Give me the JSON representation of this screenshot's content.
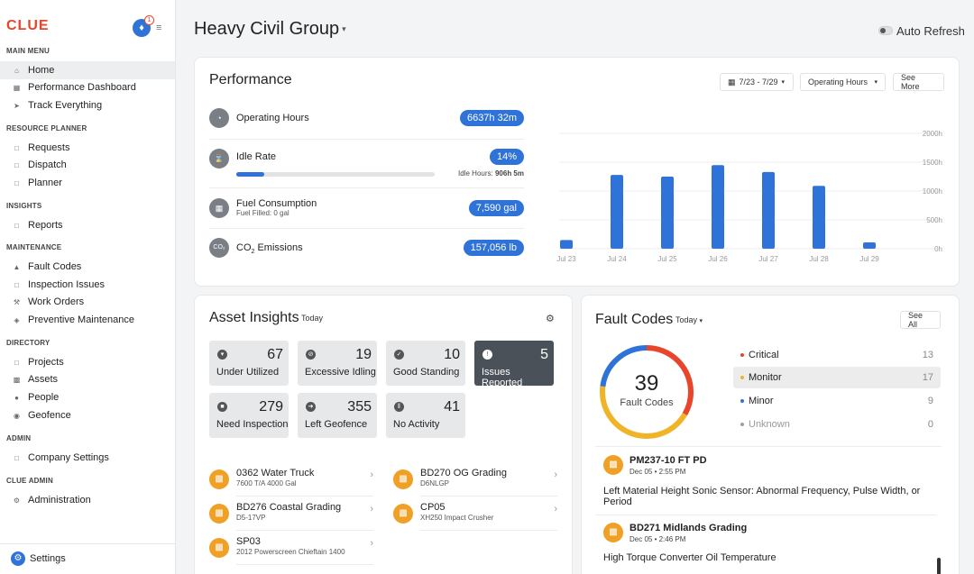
{
  "sidebar": {
    "logo": "CLUE",
    "notification_count": "1",
    "sections": {
      "main_menu": "MAIN MENU",
      "resource_planner": "RESOURCE PLANNER",
      "insights": "INSIGHTS",
      "maintenance": "MAINTENANCE",
      "directory": "DIRECTORY",
      "admin": "ADMIN",
      "clue_admin": "CLUE ADMIN"
    },
    "items": {
      "home": "Home",
      "performance_dashboard": "Performance Dashboard",
      "track_everything": "Track Everything",
      "requests": "Requests",
      "dispatch": "Dispatch",
      "planner": "Planner",
      "reports": "Reports",
      "fault_codes": "Fault Codes",
      "inspection_issues": "Inspection Issues",
      "work_orders": "Work Orders",
      "preventive_maintenance": "Preventive Maintenance",
      "projects": "Projects",
      "assets": "Assets",
      "people": "People",
      "geofence": "Geofence",
      "company_settings": "Company Settings",
      "administration": "Administration"
    },
    "settings_label": "Settings"
  },
  "header": {
    "title": "Heavy Civil Group",
    "auto_refresh_label": "Auto Refresh",
    "auto_refresh_on": false
  },
  "performance": {
    "title": "Performance",
    "date_range": "7/23 - 7/29",
    "metric_select": "Operating Hours",
    "see_more": "See More",
    "operating_hours_label": "Operating Hours",
    "operating_hours_value": "6637h 32m",
    "idle_rate_label": "Idle Rate",
    "idle_rate_value": "14%",
    "idle_rate_fraction": 0.14,
    "idle_hours_label": "Idle Hours:",
    "idle_hours_value": "906h 5m",
    "fuel_label": "Fuel Consumption",
    "fuel_sub": "Fuel Filled: 0 gal",
    "fuel_value": "7,590 gal",
    "co2_label_prefix": "CO",
    "co2_subscript": "2",
    "co2_label_suffix": "Emissions",
    "co2_value": "157,056 lb"
  },
  "chart_data": {
    "type": "bar",
    "categories": [
      "Jul 23",
      "Jul 24",
      "Jul 25",
      "Jul 26",
      "Jul 27",
      "Jul 28",
      "Jul 29"
    ],
    "values": [
      150,
      1280,
      1250,
      1450,
      1330,
      1090,
      110
    ],
    "title": "",
    "xlabel": "",
    "ylabel": "",
    "ylim": [
      0,
      2000
    ],
    "yticks": [
      "0h",
      "500h",
      "1000h",
      "1500h",
      "2000h"
    ],
    "ytick_values": [
      0,
      500,
      1000,
      1500,
      2000
    ],
    "bar_color": "#2f73d8",
    "grid": true
  },
  "asset_insights": {
    "title": "Asset Insights",
    "range": "Today",
    "tiles": [
      {
        "count": "67",
        "label": "Under Utilized"
      },
      {
        "count": "19",
        "label": "Excessive Idling"
      },
      {
        "count": "10",
        "label": "Good Standing"
      },
      {
        "count": "5",
        "label": "Issues Reported"
      },
      {
        "count": "279",
        "label": "Need Inspection"
      },
      {
        "count": "355",
        "label": "Left Geofence"
      },
      {
        "count": "41",
        "label": "No Activity"
      }
    ],
    "assets": [
      {
        "name": "0362 Water Truck",
        "sub": "7600 T/A 4000 Gal"
      },
      {
        "name": "BD270 OG Grading",
        "sub": "D6NLGP"
      },
      {
        "name": "BD276 Coastal Grading",
        "sub": "D5-17VP"
      },
      {
        "name": "CP05",
        "sub": "XH250 Impact Crusher"
      },
      {
        "name": "SP03",
        "sub": "2012 Powerscreen Chieftain 1400"
      }
    ]
  },
  "fault_codes": {
    "title": "Fault Codes",
    "range": "Today",
    "see_all": "See All",
    "total": "39",
    "total_label_1": "Fault",
    "total_label_2": "Codes",
    "legend": [
      {
        "label": "Critical",
        "count": "13",
        "color": "#e8452c"
      },
      {
        "label": "Monitor",
        "count": "17",
        "color": "#f0b429"
      },
      {
        "label": "Minor",
        "count": "9",
        "color": "#2f73d8"
      },
      {
        "label": "Unknown",
        "count": "0",
        "color": "#9aa0a6"
      }
    ],
    "items": [
      {
        "name": "PM237-10 FT PD",
        "time": "Dec 05 • 2:55 PM",
        "desc": "Left Material Height Sonic Sensor: Abnormal Frequency, Pulse Width, or Period"
      },
      {
        "name": "BD271 Midlands Grading",
        "time": "Dec 05 • 2:46 PM",
        "desc": "High Torque Converter Oil Temperature"
      }
    ]
  }
}
